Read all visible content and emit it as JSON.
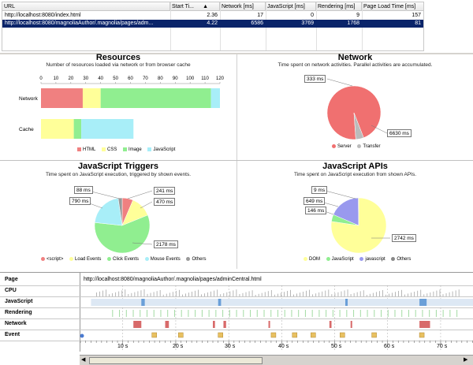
{
  "table": {
    "columns": [
      "URL",
      "Start Ti...",
      "Network [ms]",
      "JavaScript [ms]",
      "Rendering [ms]",
      "Page Load Time [ms]"
    ],
    "rows": [
      {
        "url": "http://localhost:8080/index.html",
        "start": "2.36",
        "network": "17",
        "javascript": "0",
        "rendering": "9",
        "load": "157"
      },
      {
        "url": "http://localhost:8080/magnoliaAuthor/.magnolia/pages/adm...",
        "start": "4.22",
        "network": "6586",
        "javascript": "3769",
        "rendering": "1768",
        "load": "81"
      }
    ]
  },
  "resources": {
    "title": "Resources",
    "subtitle": "Number of resources loaded via network or from browser cache",
    "row_labels": [
      "Network",
      "Cache"
    ],
    "legend": [
      "HTML",
      "CSS",
      "Image",
      "JavaScript"
    ],
    "chart_data": {
      "type": "bar",
      "stacked": true,
      "orientation": "horizontal",
      "categories": [
        "Network",
        "Cache"
      ],
      "x_ticks": [
        "0",
        "10",
        "20",
        "30",
        "40",
        "50",
        "60",
        "70",
        "80",
        "90",
        "100",
        "110",
        "120"
      ],
      "xlim": [
        0,
        120
      ],
      "series": [
        {
          "name": "HTML",
          "color": "#f08080",
          "values": [
            28,
            0
          ]
        },
        {
          "name": "CSS",
          "color": "#ffff99",
          "values": [
            12,
            22
          ]
        },
        {
          "name": "Image",
          "color": "#90ee90",
          "values": [
            74,
            5
          ]
        },
        {
          "name": "JavaScript",
          "color": "#a8eef8",
          "values": [
            6,
            35
          ]
        }
      ]
    }
  },
  "network": {
    "title": "Network",
    "subtitle": "Time spent on network activities. Parallel activities are accumulated.",
    "legend": [
      "Server",
      "Transfer"
    ],
    "chart_data": {
      "type": "pie",
      "labels": [
        "Server",
        "Transfer"
      ],
      "values": [
        6630,
        333
      ],
      "value_labels": [
        "6630 ms",
        "333 ms"
      ],
      "colors": [
        "#f07070",
        "#bbbbbb"
      ]
    }
  },
  "js_triggers": {
    "title": "JavaScript Triggers",
    "subtitle": "Time spent on JavaScript execution, triggered by shown events.",
    "legend": [
      "<script>",
      "Load Events",
      "Click Events",
      "Mouse Events",
      "Others"
    ],
    "chart_data": {
      "type": "pie",
      "labels": [
        "<script>",
        "Load Events",
        "Click Events",
        "Mouse Events",
        "Others"
      ],
      "values": [
        241,
        470,
        2178,
        790,
        88
      ],
      "value_labels": [
        "241 ms",
        "470 ms",
        "2178 ms",
        "790 ms",
        "88 ms"
      ],
      "colors": [
        "#f08080",
        "#ffff99",
        "#90ee90",
        "#a8eef8",
        "#999999"
      ]
    }
  },
  "js_apis": {
    "title": "JavaScript APIs",
    "subtitle": "Time spent on JavaScript execution from shown APIs.",
    "legend": [
      "DOM",
      "JavaScript",
      "javascript",
      "Others"
    ],
    "chart_data": {
      "type": "pie",
      "labels": [
        "DOM",
        "JavaScript",
        "javascript",
        "Others"
      ],
      "values": [
        2742,
        146,
        649,
        9
      ],
      "value_labels": [
        "2742 ms",
        "146 ms",
        "649 ms",
        "9 ms"
      ],
      "colors": [
        "#ffff99",
        "#90ee90",
        "#9999ee",
        "#888888"
      ]
    }
  },
  "timeline": {
    "rows": [
      "Page",
      "CPU",
      "JavaScript",
      "Rendering",
      "Network",
      "Event"
    ],
    "page_url": "http://localhost:8080/magnoliaAuthor/.magnolia/pages/adminCentral.html",
    "x_labels": [
      "10 s",
      "20 s",
      "30 s",
      "40 s",
      "50 s",
      "60 s",
      "70 s"
    ],
    "colors": {
      "javascript": "#6a9fd8",
      "rendering": "#7ccc7c",
      "network": "#d86a6a",
      "event": "#e8c060"
    }
  }
}
